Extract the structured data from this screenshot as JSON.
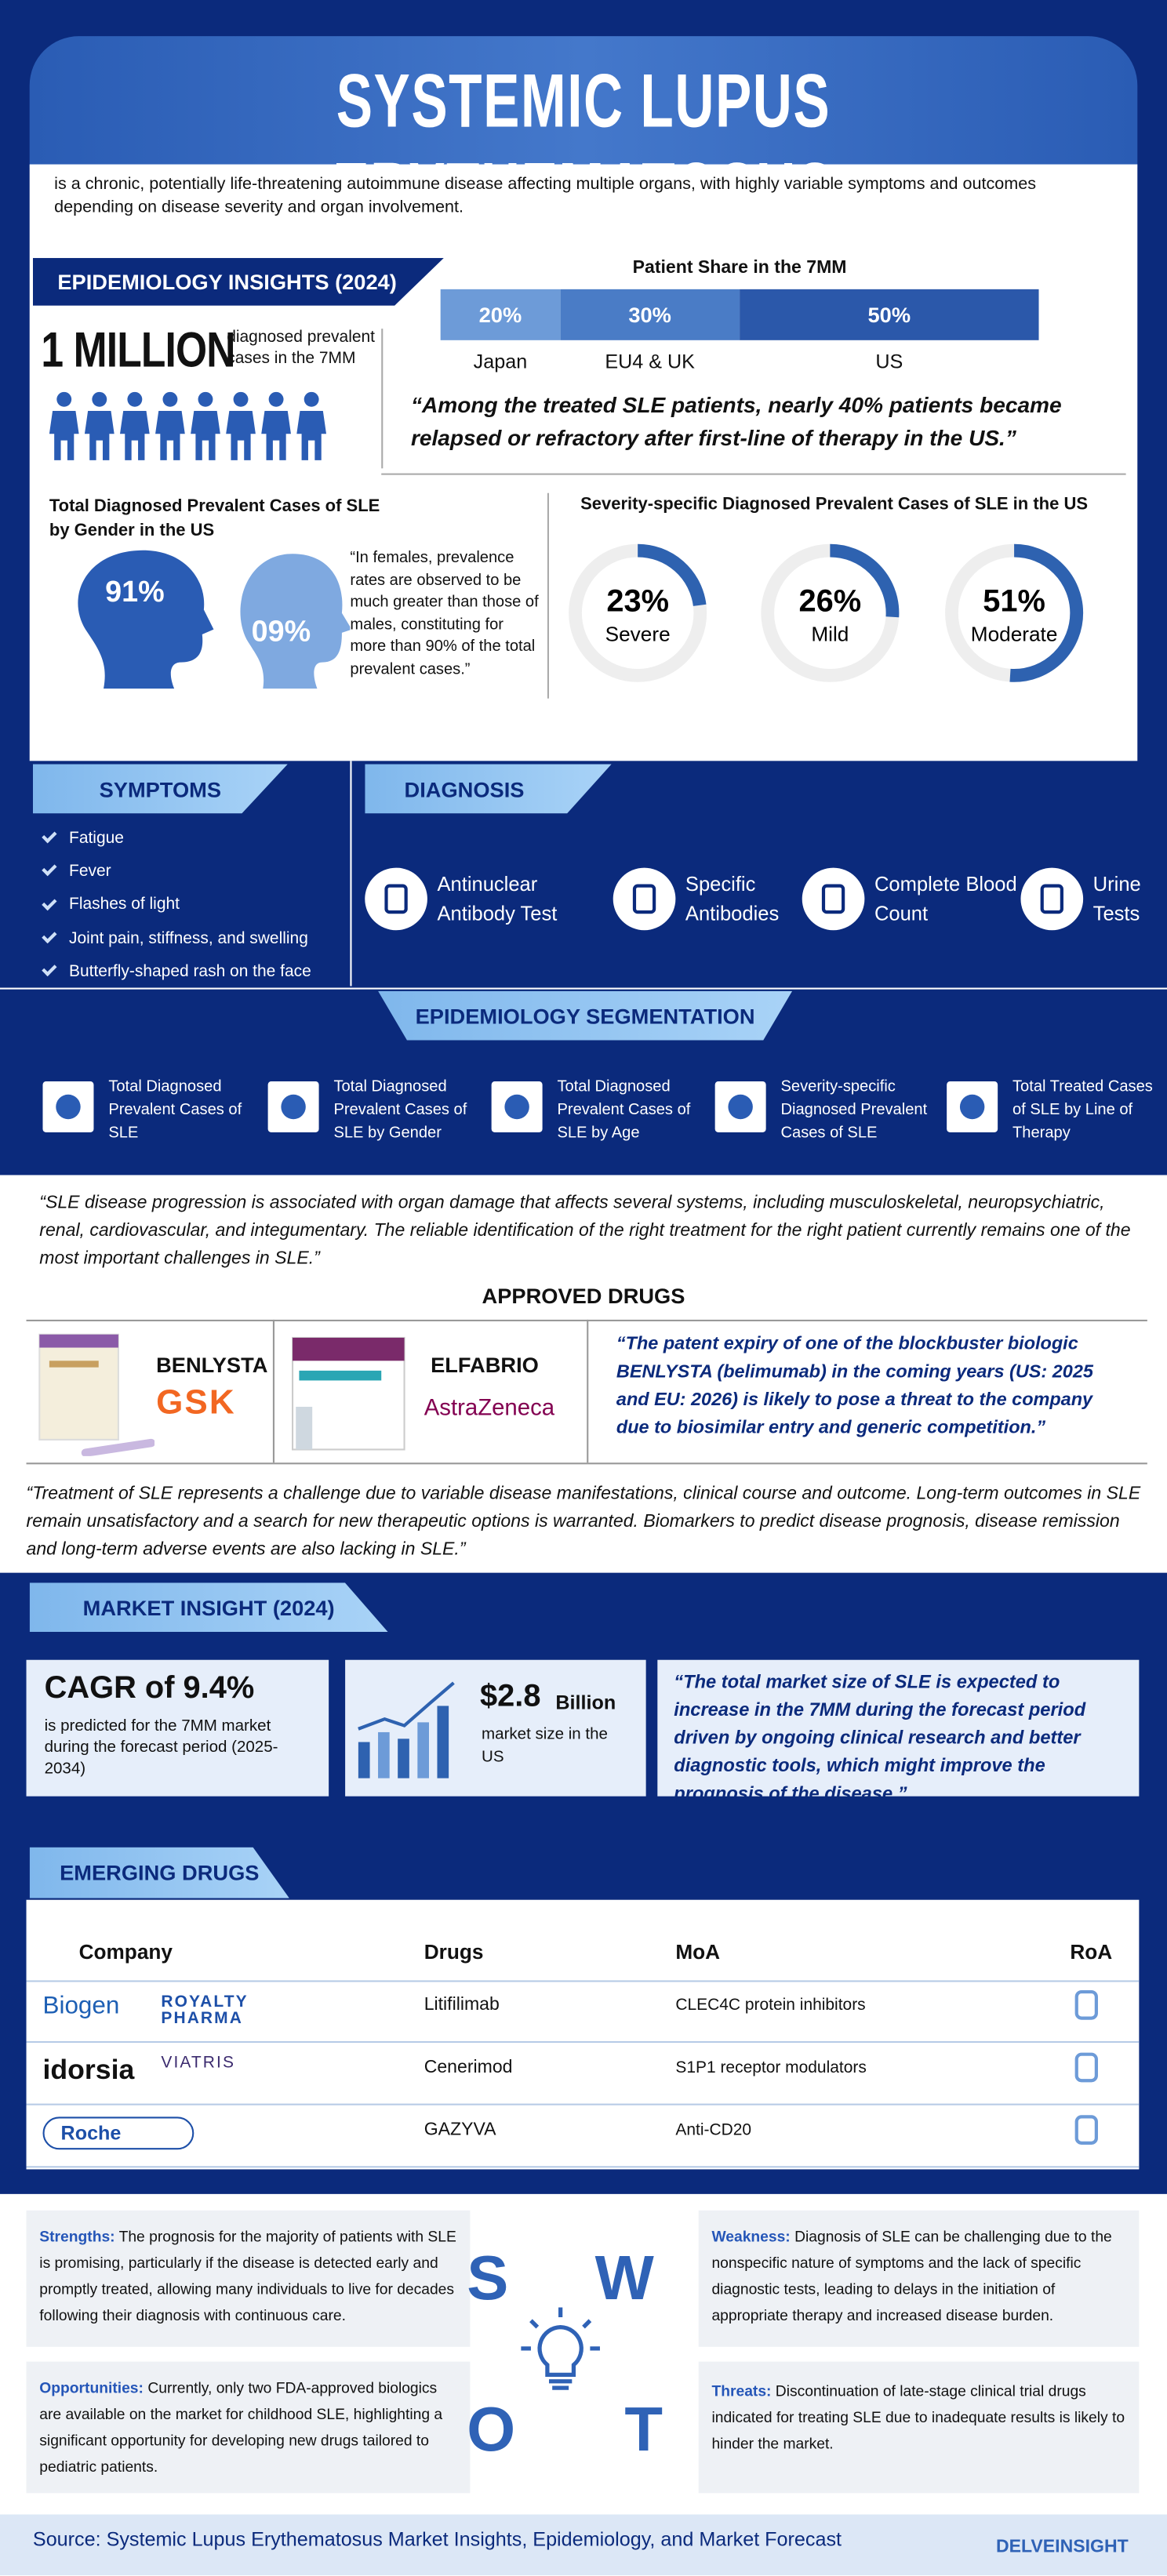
{
  "header": {
    "title": "SYSTEMIC LUPUS ERYTHEMATOSUS",
    "intro": "is a chronic, potentially life-threatening autoimmune disease affecting multiple organs, with highly variable symptoms and outcomes depending on disease severity and organ involvement."
  },
  "epidemiology": {
    "heading": "EPIDEMIOLOGY INSIGHTS (2024)",
    "big_number": "1 MILLION",
    "big_number_caption": "diagnosed prevalent cases in the 7MM",
    "patient_share": {
      "title": "Patient Share in the 7MM",
      "categories": [
        "Japan",
        "EU4 & UK",
        "US"
      ],
      "values": [
        20,
        30,
        50
      ],
      "value_labels": [
        "20%",
        "30%",
        "50%"
      ],
      "colors": [
        "#6d9bd8",
        "#4a7cc6",
        "#2b58aa"
      ]
    },
    "quote": "“Among the treated SLE patients, nearly 40% patients became relapsed or refractory after first-line of therapy in the US.”",
    "gender": {
      "title": "Total Diagnosed Prevalent Cases of SLE by Gender in the US",
      "female": "91%",
      "male": "09%",
      "note": "“In females, prevalence rates are observed to be much greater than those of males, constituting for more than 90% of the total prevalent cases.”"
    },
    "severity": {
      "title": "Severity-specific Diagnosed Prevalent Cases of SLE in the US",
      "categories": [
        "Severe",
        "Mild",
        "Moderate"
      ],
      "values": [
        23,
        26,
        51
      ],
      "value_labels": [
        "23%",
        "26%",
        "51%"
      ],
      "color": "#2e62b0"
    }
  },
  "symptoms": {
    "heading": "SYMPTOMS",
    "items": [
      "Fatigue",
      "Fever",
      "Flashes of light",
      "Joint pain, stiffness, and swelling",
      "Butterfly-shaped rash on the face"
    ]
  },
  "diagnosis": {
    "heading": "DIAGNOSIS",
    "items": [
      "Antinuclear Antibody Test",
      "Specific Antibodies",
      "Complete Blood Count",
      "Urine Tests"
    ]
  },
  "segmentation": {
    "heading": "EPIDEMIOLOGY SEGMENTATION",
    "items": [
      "Total Diagnosed Prevalent Cases of SLE",
      "Total Diagnosed Prevalent Cases of SLE by Gender",
      "Total Diagnosed Prevalent Cases of SLE by Age",
      "Severity-specific Diagnosed Prevalent Cases of SLE",
      "Total Treated Cases of SLE by Line of Therapy"
    ]
  },
  "progression_quote": "“SLE disease progression is associated with organ damage that affects several systems, including musculoskeletal, neuropsychiatric, renal, cardiovascular, and integumentary. The reliable identification of the right treatment for the right patient currently remains one of the most important challenges in SLE.”",
  "approved_drugs": {
    "heading": "APPROVED DRUGS",
    "drugs": [
      {
        "name": "BENLYSTA",
        "company": "GSK"
      },
      {
        "name": "ELFABRIO",
        "company": "AstraZeneca"
      }
    ],
    "quote": "“The patent expiry of one of the blockbuster biologic BENLYSTA (belimumab) in the coming years (US: 2025 and EU: 2026) is likely to pose a threat to the company due to biosimilar entry and generic competition.”"
  },
  "treatment_quote": "“Treatment of SLE represents a challenge due to variable disease manifestations, clinical course and outcome. Long-term outcomes in SLE remain unsatisfactory and a search for new therapeutic options is warranted. Biomarkers to predict disease prognosis, disease remission and long-term adverse events are also lacking in SLE.”",
  "market": {
    "heading": "MARKET INSIGHT (2024)",
    "cagr": "CAGR of 9.4%",
    "cagr_note": "is predicted for the 7MM market during the forecast period (2025-2034)",
    "size": "$2.8",
    "size_unit": "Billion",
    "size_note": "market size in the US",
    "quote": "“The total market size of SLE is expected to increase in the 7MM during the forecast period driven by ongoing clinical research and better diagnostic tools, which might improve the prognosis of the disease.”"
  },
  "emerging": {
    "heading": "EMERGING DRUGS",
    "columns": [
      "Company",
      "Drugs",
      "MoA",
      "RoA"
    ],
    "rows": [
      {
        "companies": [
          "Biogen",
          "ROYALTY PHARMA"
        ],
        "drug": "Litifilimab",
        "moa": "CLEC4C protein inhibitors"
      },
      {
        "companies": [
          "idorsia",
          "VIATRIS"
        ],
        "drug": "Cenerimod",
        "moa": "S1P1 receptor modulators"
      },
      {
        "companies": [
          "Roche"
        ],
        "drug": "GAZYVA",
        "moa": "Anti-CD20"
      }
    ]
  },
  "swot": {
    "letters": [
      "S",
      "W",
      "O",
      "T"
    ],
    "strengths": {
      "label": "Strengths:",
      "text": "The prognosis for the majority of patients with SLE is promising, particularly if the disease is detected early and promptly treated, allowing many individuals to live for decades following their diagnosis with continuous care."
    },
    "weakness": {
      "label": "Weakness:",
      "text": "Diagnosis of SLE can be challenging due to the nonspecific nature of symptoms and the lack of specific diagnostic tests, leading to delays in the initiation of appropriate therapy and increased disease burden."
    },
    "opportunities": {
      "label": "Opportunities:",
      "text": "Currently, only two FDA-approved biologics are available on the market for childhood SLE, highlighting a significant opportunity for developing new drugs tailored to pediatric patients."
    },
    "threats": {
      "label": "Threats:",
      "text": "Discontinuation of late-stage clinical trial drugs indicated for treating SLE due to inadequate results is likely to hinder the market."
    }
  },
  "footer": {
    "source": "Source: Systemic Lupus Erythematosus Market Insights, Epidemiology, and Market Forecast",
    "brand": "DELVEINSIGHT"
  }
}
